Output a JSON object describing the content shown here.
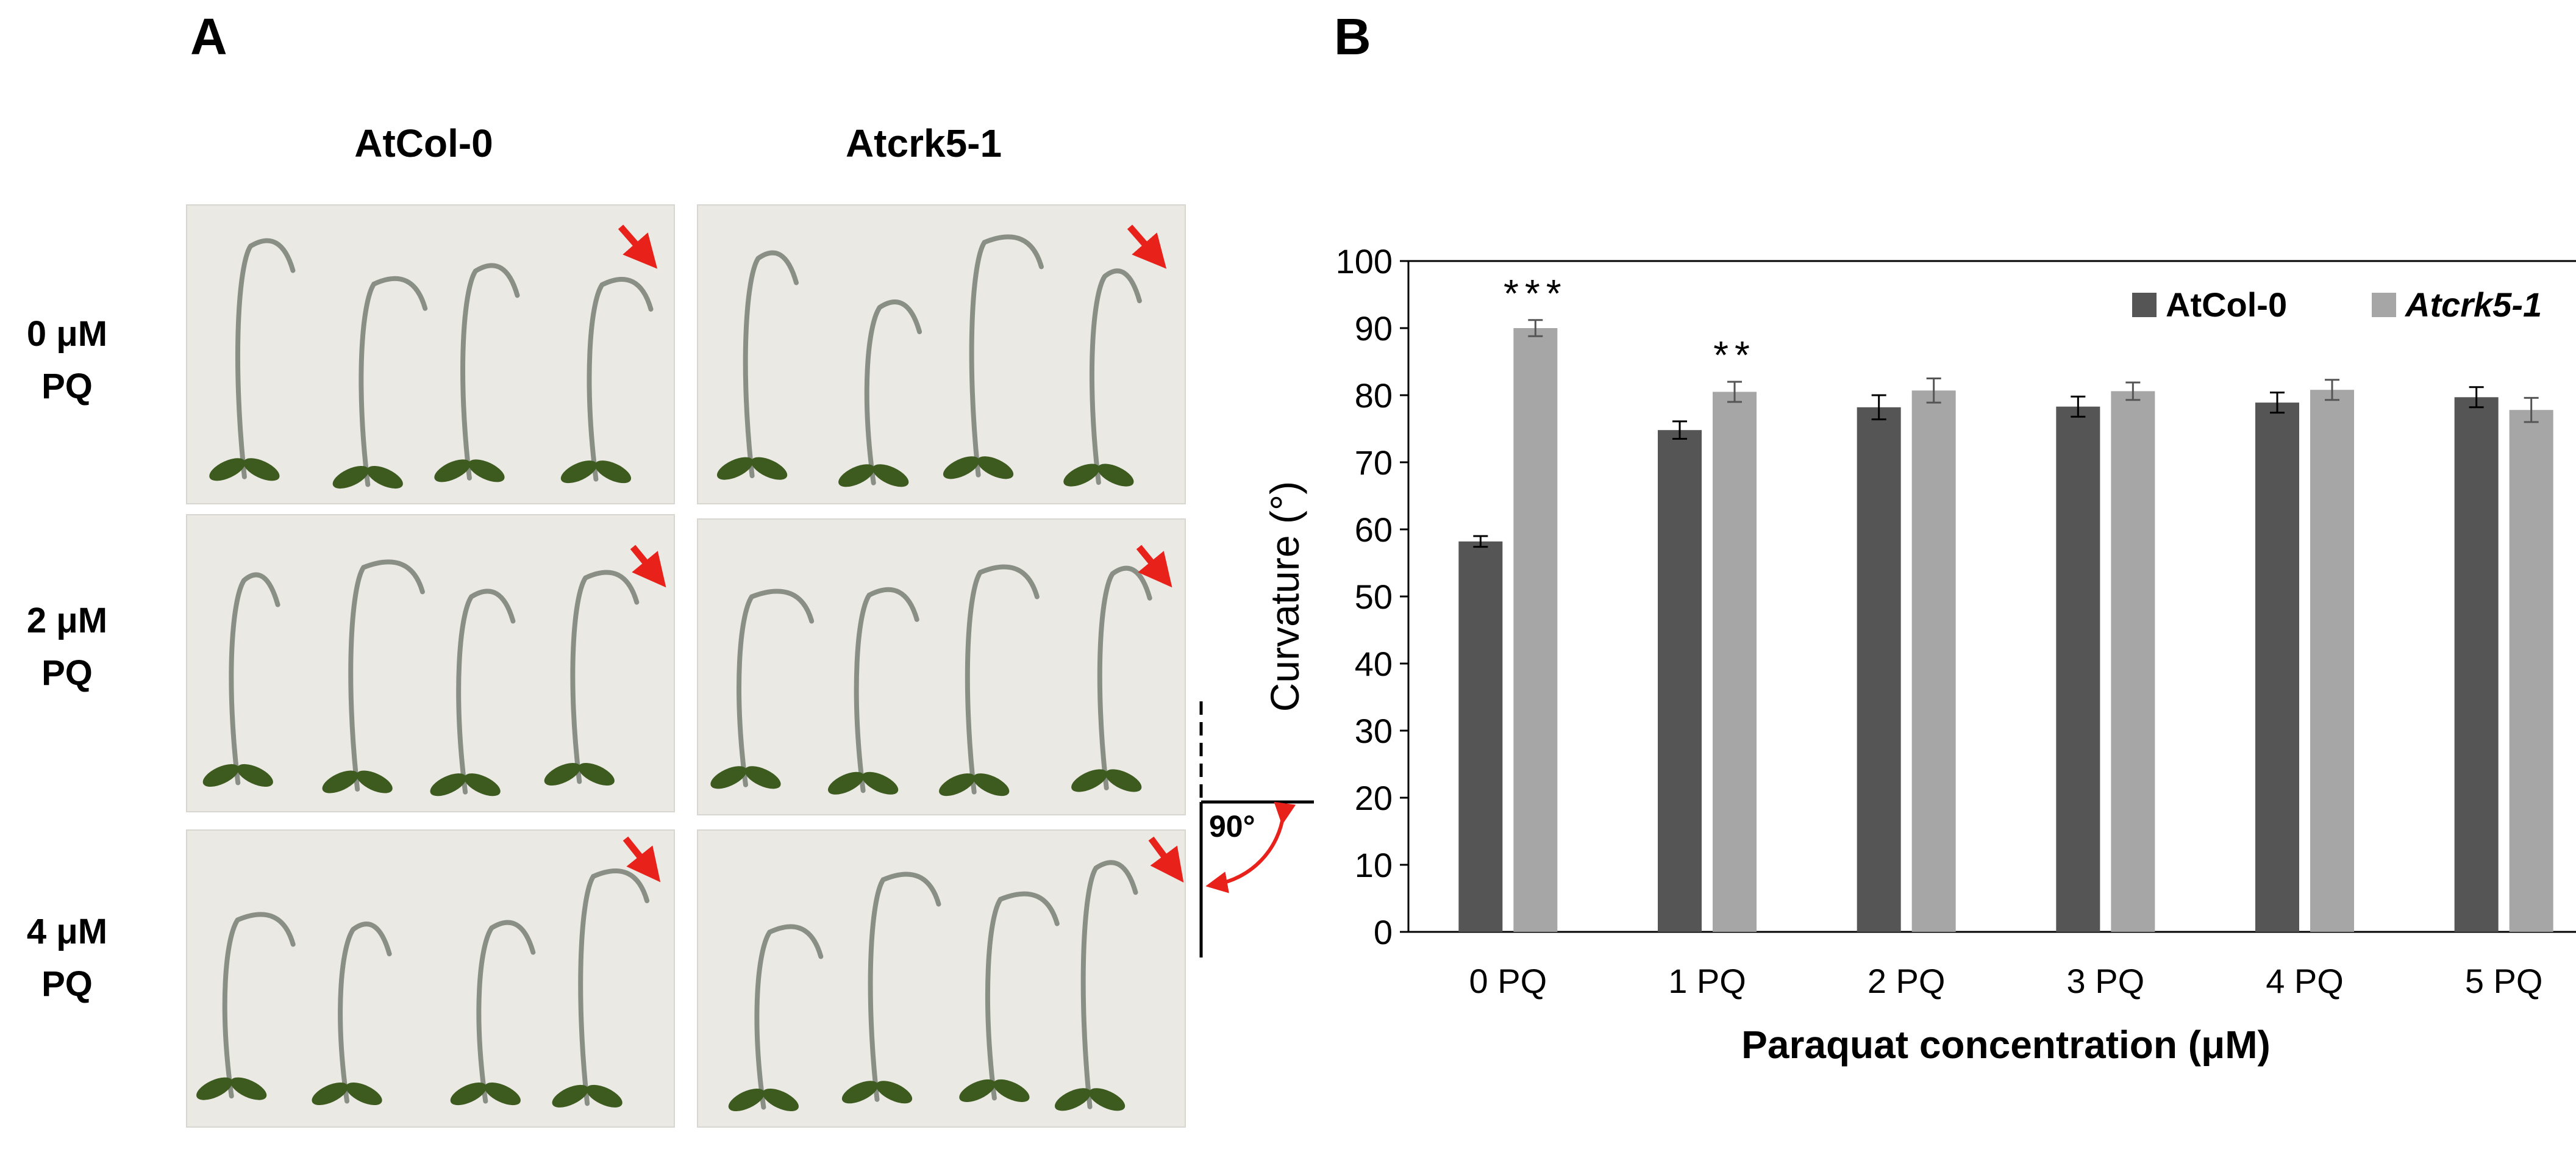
{
  "panel_a": {
    "letter": "A",
    "columns": [
      "AtCol-0",
      "Atcrk5-1"
    ],
    "rows": [
      {
        "line1": "0 μM",
        "line2": "PQ"
      },
      {
        "line1": "2 μM",
        "line2": "PQ"
      },
      {
        "line1": "4 μM",
        "line2": "PQ"
      }
    ],
    "angle_label": "90°",
    "colors": {
      "arrow": "#e8211b",
      "seedling_stem": "#8a8f86",
      "cotyledon": "#3d5a1f"
    }
  },
  "panel_b": {
    "letter": "B"
  },
  "chart_data": {
    "type": "bar",
    "categories": [
      "0 PQ",
      "1 PQ",
      "2 PQ",
      "3 PQ",
      "4 PQ",
      "5 PQ"
    ],
    "series": [
      {
        "name": "AtCol-0",
        "color": "#555555",
        "values": [
          58.2,
          74.8,
          78.2,
          78.3,
          78.9,
          79.7
        ],
        "errors": [
          0.8,
          1.3,
          1.8,
          1.5,
          1.5,
          1.5
        ]
      },
      {
        "name": "Atcrk5-1",
        "color": "#a6a6a6",
        "values": [
          90.0,
          80.5,
          80.7,
          80.6,
          80.8,
          77.8
        ],
        "errors": [
          1.2,
          1.5,
          1.8,
          1.3,
          1.5,
          1.8
        ]
      }
    ],
    "annotations": [
      {
        "category": "0 PQ",
        "series": "Atcrk5-1",
        "text": "***"
      },
      {
        "category": "1 PQ",
        "series": "Atcrk5-1",
        "text": "**"
      }
    ],
    "xlabel": "Paraquat concentration (μM)",
    "ylabel": "Curvature (°)",
    "ylim": [
      0,
      100
    ],
    "yticks": [
      0,
      10,
      20,
      30,
      40,
      50,
      60,
      70,
      80,
      90,
      100
    ],
    "legend_position": "top-right",
    "grid": false
  }
}
